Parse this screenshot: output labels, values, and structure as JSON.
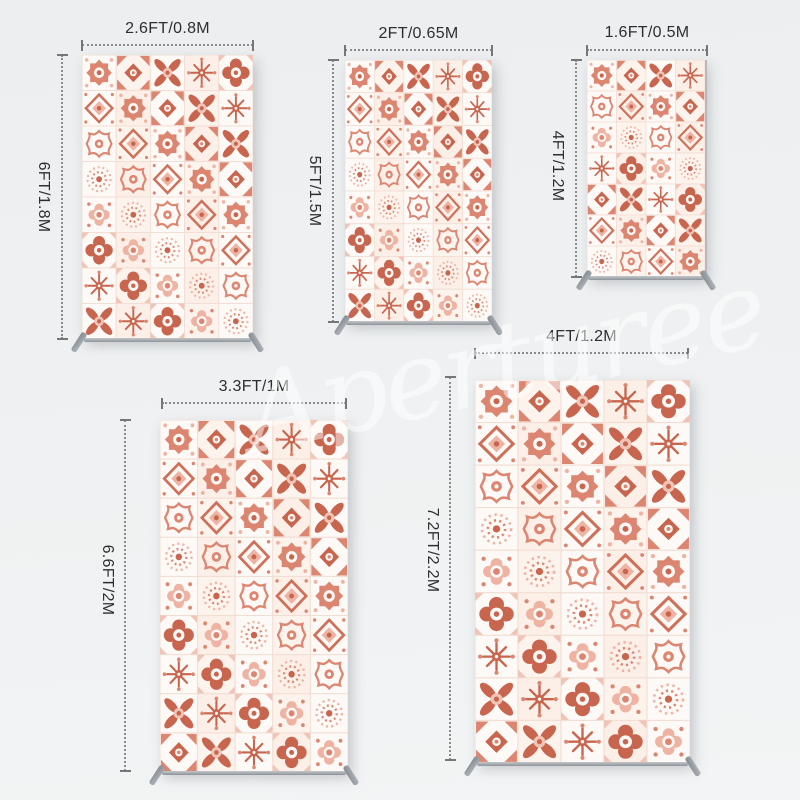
{
  "watermark": {
    "text": "Aperturee"
  },
  "colors": {
    "background": "#edeff1",
    "tile_deep": "#c8654e",
    "tile_mid": "#dc8570",
    "tile_light": "#eeb3a2",
    "tile_faint": "#f0c4b6",
    "tile_background": "#fdf8f5",
    "dimension_line": "#8b8b8b",
    "label_text": "#2e2e2e",
    "stand_gray": "#9aa0a6"
  },
  "banners": [
    {
      "name": "banner-top-left",
      "width_label": "2.6FT/0.8M",
      "height_label": "6FT/1.8M"
    },
    {
      "name": "banner-top-middle",
      "width_label": "2FT/0.65M",
      "height_label": "5FT/1.5M"
    },
    {
      "name": "banner-top-right",
      "width_label": "1.6FT/0.5M",
      "height_label": "4FT/1.2M"
    },
    {
      "name": "banner-bottom-left",
      "width_label": "3.3FT/1M",
      "height_label": "6.6FT/2M"
    },
    {
      "name": "banner-bottom-right",
      "width_label": "4FT/1.2M",
      "height_label": "7.2FT/2.2M"
    }
  ]
}
